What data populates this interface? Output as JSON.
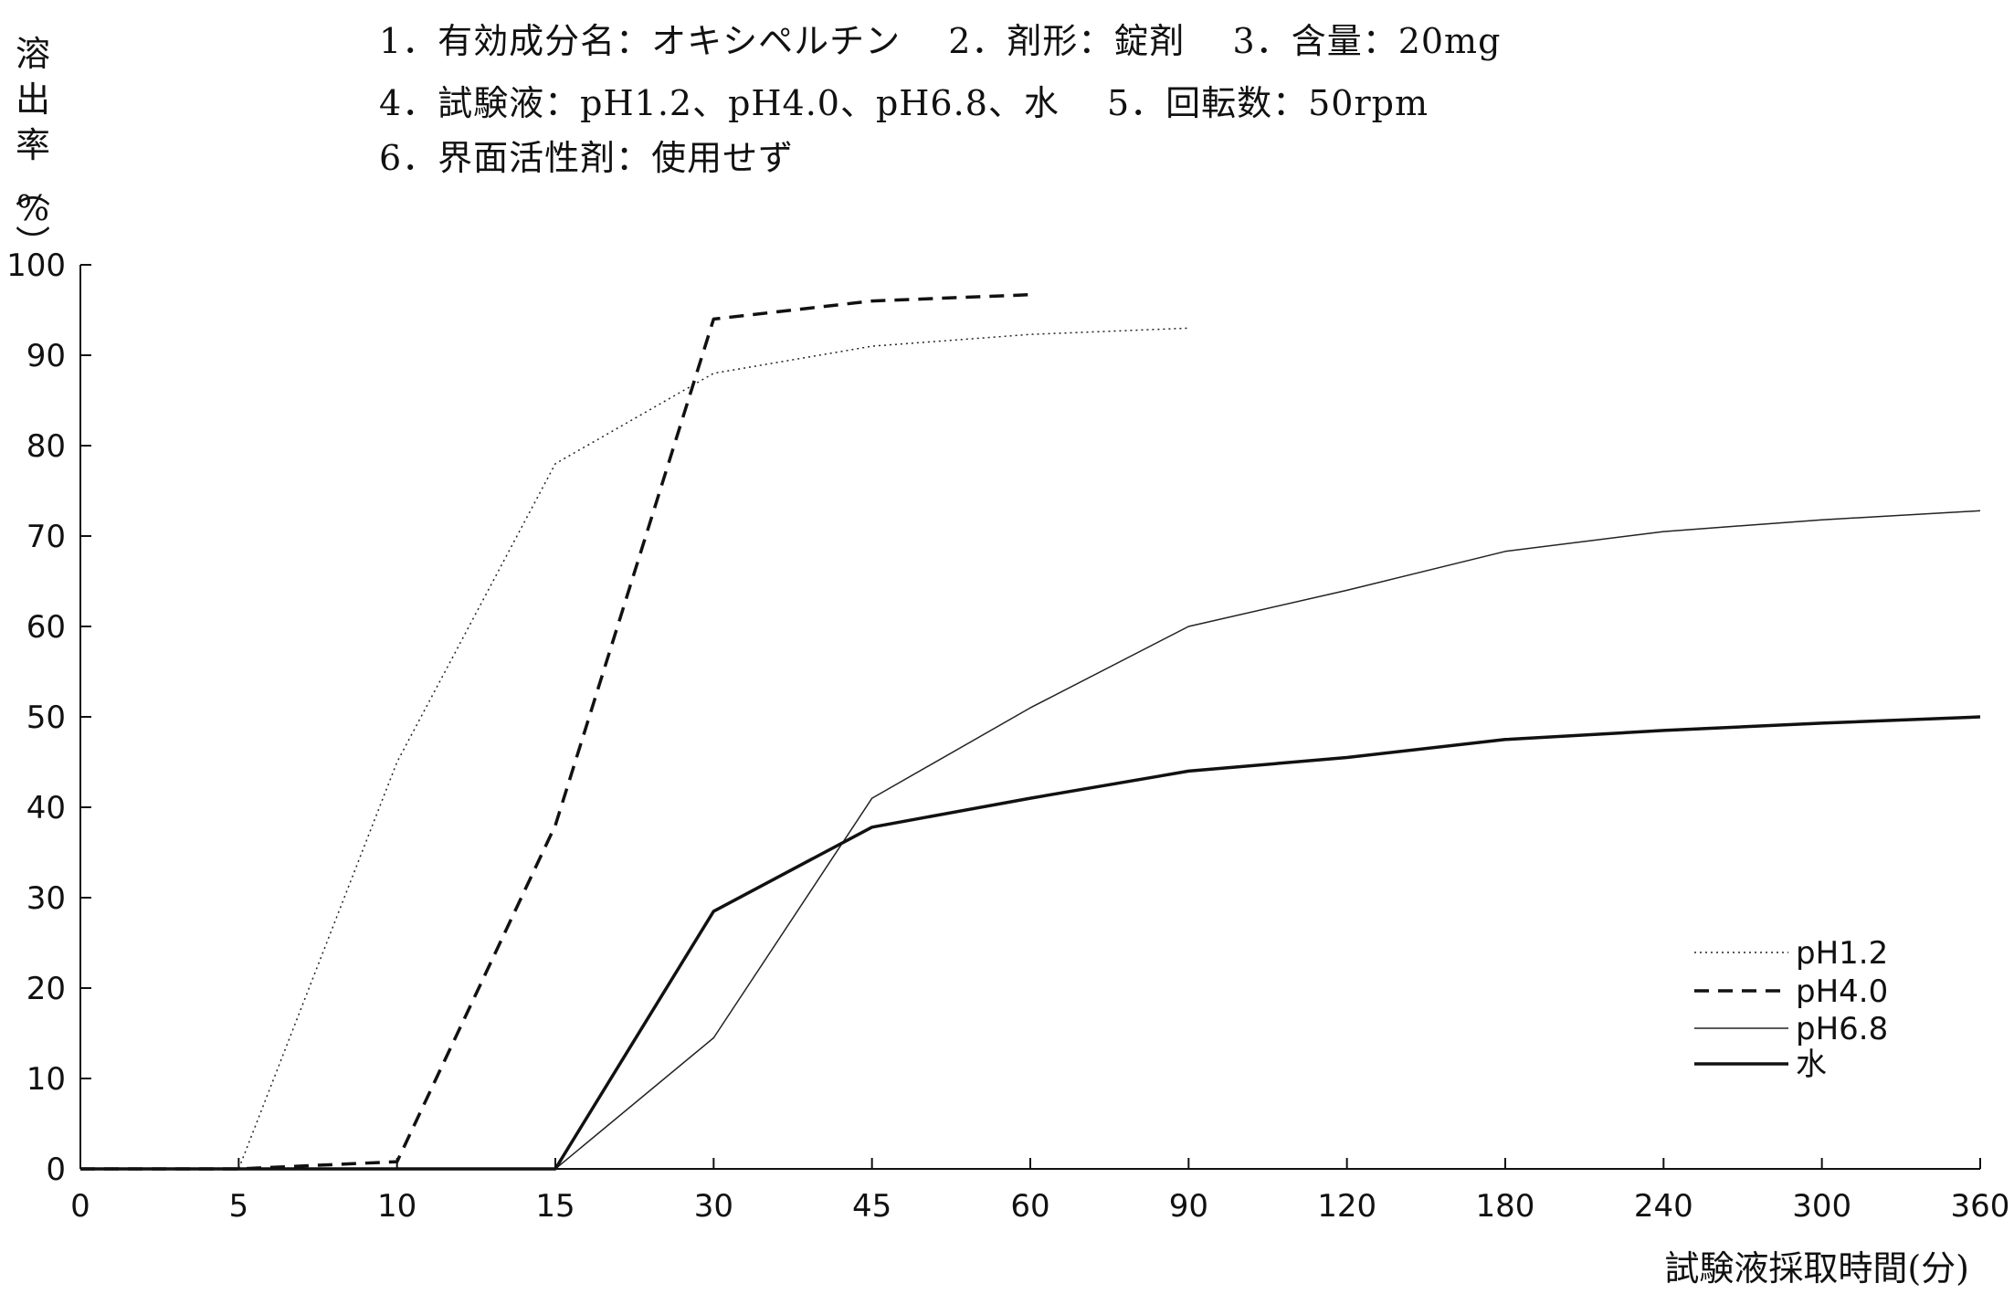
{
  "header": {
    "line1": "1．有効成分名：オキシペルチン　 2．剤形：錠剤　 3．含量：20mg",
    "line2": "4．試験液：pH1.2、pH4.0、pH6.8、水　 5．回転数：50rpm",
    "line3": "6．界面活性剤：使用せず"
  },
  "chart_data": {
    "type": "line",
    "title": "",
    "ylabel": "溶出率(%)",
    "xlabel": "試験液採取時間(分)",
    "ylim": [
      0,
      100
    ],
    "yticks": [
      0,
      10,
      20,
      30,
      40,
      50,
      60,
      70,
      80,
      90,
      100
    ],
    "categories": [
      "0",
      "5",
      "10",
      "15",
      "30",
      "45",
      "60",
      "90",
      "120",
      "180",
      "240",
      "300",
      "360"
    ],
    "x_scale": "categorical (equally spaced sampling times)",
    "legend_position": "bottom-right",
    "grid": false,
    "series": [
      {
        "name": "pH1.2",
        "style": "dotted",
        "x": [
          0,
          5,
          10,
          15,
          30,
          45,
          60,
          90
        ],
        "values": [
          0,
          0,
          45,
          78,
          88,
          91,
          92.3,
          93
        ]
      },
      {
        "name": "pH4.0",
        "style": "dashed",
        "x": [
          0,
          5,
          10,
          15,
          30,
          45,
          60
        ],
        "values": [
          0,
          0,
          0.8,
          38,
          94,
          96,
          96.7
        ]
      },
      {
        "name": "pH6.8",
        "style": "thin",
        "x": [
          0,
          5,
          10,
          15,
          30,
          45,
          60,
          90,
          120,
          180,
          240,
          300,
          360
        ],
        "values": [
          0,
          0,
          0,
          0,
          14.5,
          41,
          51,
          60,
          64,
          68.3,
          70.5,
          71.8,
          72.8
        ]
      },
      {
        "name": "水",
        "style": "thick",
        "x": [
          0,
          5,
          10,
          15,
          30,
          45,
          60,
          90,
          120,
          180,
          240,
          300,
          360
        ],
        "values": [
          0,
          0,
          0,
          0,
          28.5,
          37.8,
          41,
          44,
          45.5,
          47.5,
          48.5,
          49.3,
          50
        ]
      }
    ]
  }
}
